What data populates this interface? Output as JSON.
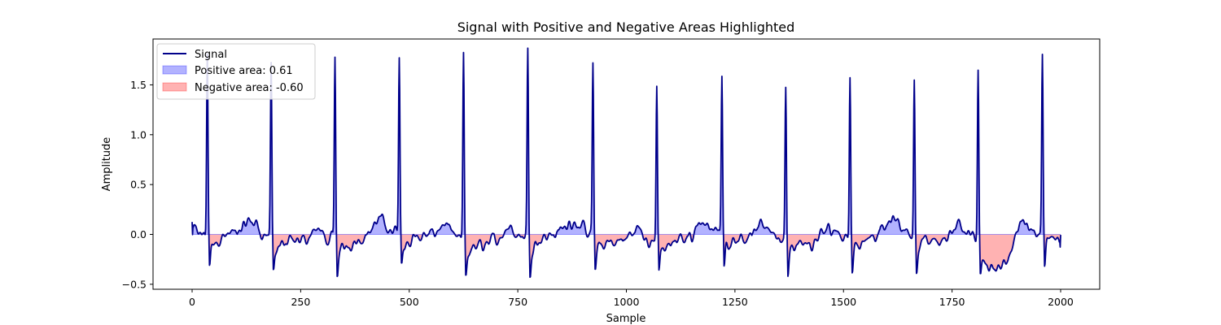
{
  "chart_data": {
    "type": "line",
    "title": "Signal with Positive and Negative Areas Highlighted",
    "xlabel": "Sample",
    "ylabel": "Amplitude",
    "xlim": [
      -90,
      2090
    ],
    "ylim": [
      -0.55,
      1.96
    ],
    "xticks": [
      0,
      250,
      500,
      750,
      1000,
      1250,
      1500,
      1750,
      2000
    ],
    "yticks": [
      -0.5,
      0.0,
      0.5,
      1.0,
      1.5
    ],
    "x_start": 0,
    "x_end": 2000,
    "peaks": [
      {
        "x": 35,
        "amp": 1.78
      },
      {
        "x": 182,
        "amp": 1.7
      },
      {
        "x": 329,
        "amp": 1.79
      },
      {
        "x": 477,
        "amp": 1.72
      },
      {
        "x": 625,
        "amp": 1.83
      },
      {
        "x": 773,
        "amp": 1.83
      },
      {
        "x": 923,
        "amp": 1.67
      },
      {
        "x": 1070,
        "amp": 1.57
      },
      {
        "x": 1220,
        "amp": 1.52
      },
      {
        "x": 1367,
        "amp": 1.5
      },
      {
        "x": 1515,
        "amp": 1.61
      },
      {
        "x": 1663,
        "amp": 1.54
      },
      {
        "x": 1810,
        "amp": 1.67
      },
      {
        "x": 1958,
        "amp": 1.72
      }
    ],
    "baseline_min": -0.3,
    "baseline_max": 0.22,
    "series": [
      {
        "name": "Signal",
        "color": "#00008b"
      },
      {
        "name": "Positive area",
        "value": 0.61,
        "color": "#0000ff"
      },
      {
        "name": "Negative area",
        "value": -0.6,
        "color": "#ff0000"
      }
    ],
    "legend_labels": [
      "Signal",
      "Positive area: 0.61",
      "Negative area: -0.60"
    ],
    "legend_position": "top-left"
  }
}
